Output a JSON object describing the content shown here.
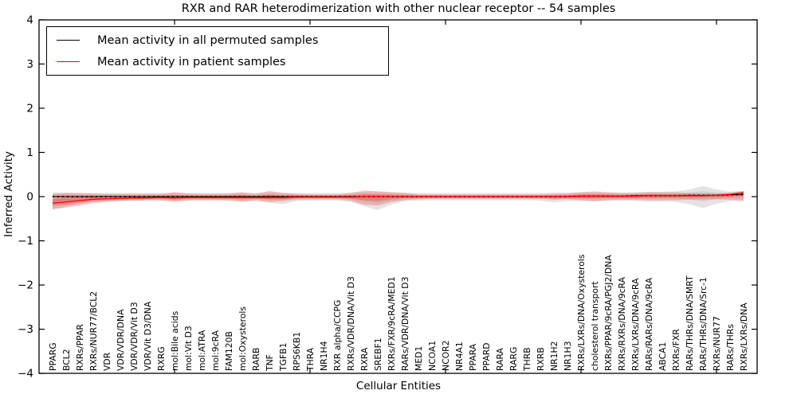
{
  "title": "RXR and RAR heterodimerization with other nuclear receptor -- 54 samples",
  "legend": {
    "items": [
      {
        "label": "Mean activity in all permuted samples",
        "color": "#000000"
      },
      {
        "label": "Mean activity in patient samples",
        "color": "#ff0000"
      }
    ]
  },
  "chart_data": {
    "type": "line",
    "title": "RXR and RAR heterodimerization with other nuclear receptor -- 54 samples",
    "xlabel": "Cellular Entities",
    "ylabel": "Inferred Activity",
    "ylim": [
      -4,
      4
    ],
    "yticks": [
      4,
      3,
      2,
      1,
      0,
      -1,
      -2,
      -3,
      -4
    ],
    "ytick_labels": [
      "4",
      "3",
      "2",
      "1",
      "0",
      "−1",
      "−2",
      "−3",
      "−4"
    ],
    "xtick_data_positions": [
      10,
      20,
      30,
      40,
      50
    ],
    "grid": false,
    "legend_position": "upper left",
    "categories": [
      "PPARG",
      "BCL2",
      "RXRs/PPAR",
      "RXRs/NUR77/BCL2",
      "VDR",
      "VDR/VDR/DNA",
      "VDR/VDR/Vit D3",
      "VDR/Vit D3/DNA",
      "RXRG",
      "mol:Bile acids",
      "mol:Vit D3",
      "mol:ATRA",
      "mol:9cRA",
      "FAM120B",
      "mol:Oxysterols",
      "RARB",
      "TNF",
      "TGFB1",
      "RPS6KB1",
      "THRA",
      "NR1H4",
      "RXR alpha/CCPG",
      "RXRs/VDR/DNA/Vit D3",
      "RXRA",
      "SREBF1",
      "RXRs/FXR/9cRA/MED1",
      "RARs/VDR/DNA/Vit D3",
      "MED1",
      "NCOA1",
      "NCOR2",
      "NR4A1",
      "PPARA",
      "PPARD",
      "RARA",
      "RARG",
      "THRB",
      "RXRB",
      "NR1H2",
      "NR1H3",
      "RXRs/LXRs/DNA/Oxysterols",
      "cholesterol transport",
      "RXRs/PPAR/9cRA/PGJ2/DNA",
      "RXRs/RXRs/DNA/9cRA",
      "RXRs/LXRs/DNA/9cRA",
      "RARs/RARs/DNA/9cRA",
      "ABCA1",
      "RXRs/FXR",
      "RARs/THRs/DNA/SMRT",
      "RARs/THRs/DNA/Src-1",
      "RXRs/NUR77",
      "RARs/THRs",
      "RXRs/LXRs/DNA"
    ],
    "series": [
      {
        "name": "Mean activity in all permuted samples",
        "color": "#000000",
        "band_color": "#999999",
        "band_opacity": 0.28,
        "values": [
          0,
          0,
          0,
          0,
          0,
          0,
          0,
          0,
          0,
          0,
          0,
          0,
          0,
          0,
          0,
          0,
          0,
          0,
          0,
          0,
          0,
          0,
          0,
          0,
          0,
          0,
          0,
          0,
          0,
          0,
          0,
          0,
          0,
          0,
          0,
          0,
          0,
          0,
          0,
          0.01,
          0.01,
          0.01,
          0.01,
          0.02,
          0.02,
          0.02,
          0.02,
          0.03,
          0.03,
          0.03,
          0.04,
          0.05
        ],
        "band_upper": [
          0.1,
          0.09,
          0.08,
          0.08,
          0.08,
          0.08,
          0.08,
          0.08,
          0.08,
          0.09,
          0.08,
          0.08,
          0.08,
          0.08,
          0.09,
          0.08,
          0.1,
          0.09,
          0.08,
          0.08,
          0.08,
          0.08,
          0.09,
          0.11,
          0.13,
          0.1,
          0.09,
          0.08,
          0.08,
          0.08,
          0.08,
          0.08,
          0.08,
          0.08,
          0.08,
          0.08,
          0.08,
          0.09,
          0.09,
          0.1,
          0.1,
          0.09,
          0.09,
          0.1,
          0.11,
          0.11,
          0.12,
          0.16,
          0.24,
          0.16,
          0.11,
          0.13
        ],
        "band_lower": [
          -0.3,
          -0.22,
          -0.16,
          -0.12,
          -0.1,
          -0.09,
          -0.09,
          -0.09,
          -0.09,
          -0.1,
          -0.09,
          -0.09,
          -0.09,
          -0.09,
          -0.1,
          -0.09,
          -0.14,
          -0.17,
          -0.1,
          -0.09,
          -0.09,
          -0.09,
          -0.12,
          -0.22,
          -0.3,
          -0.18,
          -0.1,
          -0.09,
          -0.08,
          -0.08,
          -0.08,
          -0.08,
          -0.08,
          -0.08,
          -0.08,
          -0.08,
          -0.09,
          -0.13,
          -0.1,
          -0.1,
          -0.11,
          -0.1,
          -0.09,
          -0.1,
          -0.12,
          -0.11,
          -0.12,
          -0.17,
          -0.26,
          -0.16,
          -0.1,
          -0.12
        ]
      },
      {
        "name": "Mean activity in patient samples",
        "color": "#ff0000",
        "band_color": "#ff0000",
        "band_opacity": 0.22,
        "values": [
          -0.15,
          -0.12,
          -0.09,
          -0.06,
          -0.05,
          -0.04,
          -0.03,
          -0.03,
          -0.02,
          -0.03,
          -0.02,
          -0.02,
          -0.02,
          -0.02,
          -0.02,
          -0.02,
          -0.02,
          -0.02,
          -0.01,
          -0.01,
          -0.01,
          -0.01,
          -0.01,
          0,
          0,
          0,
          0,
          0,
          0,
          0,
          0,
          0,
          0,
          0,
          0,
          0,
          0,
          0,
          0,
          0.01,
          0.01,
          0.01,
          0.01,
          0.01,
          0.02,
          0.02,
          0.02,
          0.02,
          0.02,
          0.03,
          0.05,
          0.09
        ],
        "band_upper": [
          0.06,
          0.08,
          0.08,
          0.07,
          0.06,
          0.06,
          0.06,
          0.06,
          0.06,
          0.1,
          0.07,
          0.06,
          0.06,
          0.07,
          0.1,
          0.06,
          0.13,
          0.08,
          0.06,
          0.05,
          0.05,
          0.05,
          0.08,
          0.14,
          0.11,
          0.1,
          0.08,
          0.05,
          0.05,
          0.05,
          0.05,
          0.05,
          0.05,
          0.05,
          0.05,
          0.05,
          0.05,
          0.06,
          0.07,
          0.1,
          0.12,
          0.1,
          0.08,
          0.08,
          0.1,
          0.1,
          0.1,
          0.08,
          0.07,
          0.07,
          0.09,
          0.13
        ],
        "band_lower": [
          -0.28,
          -0.25,
          -0.2,
          -0.15,
          -0.12,
          -0.1,
          -0.09,
          -0.08,
          -0.08,
          -0.12,
          -0.08,
          -0.08,
          -0.08,
          -0.08,
          -0.12,
          -0.08,
          -0.12,
          -0.1,
          -0.07,
          -0.06,
          -0.06,
          -0.06,
          -0.09,
          -0.18,
          -0.2,
          -0.12,
          -0.08,
          -0.06,
          -0.05,
          -0.05,
          -0.05,
          -0.05,
          -0.05,
          -0.05,
          -0.05,
          -0.05,
          -0.05,
          -0.07,
          -0.06,
          -0.08,
          -0.1,
          -0.08,
          -0.07,
          -0.07,
          -0.08,
          -0.08,
          -0.08,
          -0.07,
          -0.06,
          -0.06,
          -0.07,
          -0.08
        ]
      }
    ]
  }
}
